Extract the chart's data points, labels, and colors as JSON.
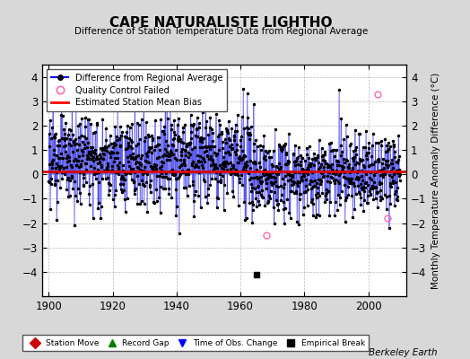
{
  "title": "CAPE NATURALISTE LIGHTHO",
  "subtitle": "Difference of Station Temperature Data from Regional Average",
  "ylabel": "Monthly Temperature Anomaly Difference (°C)",
  "xlabel_years": [
    1900,
    1920,
    1940,
    1960,
    1980,
    2000
  ],
  "xlim": [
    1898,
    2012
  ],
  "ylim": [
    -5,
    4.5
  ],
  "yticks": [
    -4,
    -3,
    -2,
    -1,
    0,
    1,
    2,
    3,
    4
  ],
  "bias_line_y": 0.1,
  "empirical_break_x": 1965,
  "empirical_break_y": -4.1,
  "time_of_obs_change_x": 1965,
  "time_of_obs_change_y": -4.1,
  "qc_failed_points": [
    [
      2003,
      3.3
    ],
    [
      2006,
      -1.8
    ],
    [
      1968,
      -2.5
    ]
  ],
  "bg_color": "#d8d8d8",
  "plot_bg_color": "#ffffff",
  "line_color": "#5555ee",
  "dot_color": "#000000",
  "bias_color": "#dd0000",
  "seed": 123
}
